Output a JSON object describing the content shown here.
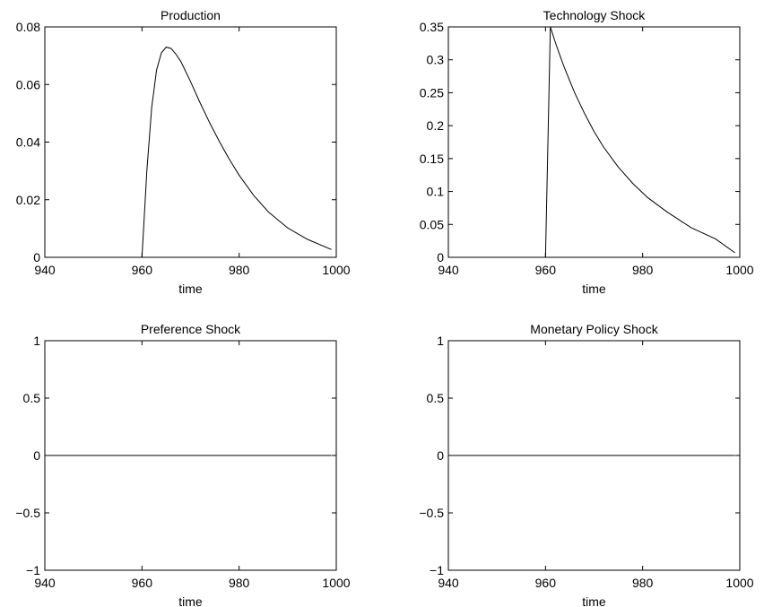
{
  "chart_data": [
    {
      "type": "line",
      "title": "Production",
      "xlabel": "time",
      "ylabel": "",
      "xlim": [
        940,
        1000
      ],
      "ylim": [
        0,
        0.08
      ],
      "xticks": [
        940,
        960,
        980,
        1000
      ],
      "xtick_labels": [
        "940",
        "960",
        "980",
        "1000"
      ],
      "yticks": [
        0,
        0.02,
        0.04,
        0.06,
        0.08
      ],
      "ytick_labels": [
        "0",
        "0.02",
        "0.04",
        "0.06",
        "0.08"
      ],
      "grid": false,
      "series": [
        {
          "x": [
            940,
            945,
            950,
            955,
            960,
            961,
            962,
            963,
            964,
            965,
            966,
            967,
            968,
            970,
            972,
            974,
            976,
            978,
            980,
            983,
            986,
            990,
            994,
            999
          ],
          "y": [
            0,
            0,
            0,
            0,
            0,
            0.03,
            0.052,
            0.065,
            0.071,
            0.073,
            0.0725,
            0.0705,
            0.068,
            0.061,
            0.0535,
            0.0465,
            0.04,
            0.034,
            0.0285,
            0.0215,
            0.0158,
            0.0102,
            0.0063,
            0.0027
          ]
        }
      ]
    },
    {
      "type": "line",
      "title": "Technology Shock",
      "xlabel": "time",
      "ylabel": "",
      "xlim": [
        940,
        1000
      ],
      "ylim": [
        0,
        0.35
      ],
      "xticks": [
        940,
        960,
        980,
        1000
      ],
      "xtick_labels": [
        "940",
        "960",
        "980",
        "1000"
      ],
      "yticks": [
        0,
        0.05,
        0.1,
        0.15,
        0.2,
        0.25,
        0.3,
        0.35
      ],
      "ytick_labels": [
        "0",
        "0.05",
        "0.1",
        "0.15",
        "0.2",
        "0.25",
        "0.3",
        "0.35"
      ],
      "grid": false,
      "series": [
        {
          "x": [
            940,
            945,
            950,
            955,
            960,
            961,
            962,
            963,
            964,
            966,
            968,
            970,
            972,
            975,
            978,
            981,
            985,
            990,
            995,
            999
          ],
          "y": [
            0,
            0,
            0,
            0,
            0,
            0.35,
            0.327,
            0.306,
            0.286,
            0.25,
            0.219,
            0.191,
            0.167,
            0.137,
            0.112,
            0.091,
            0.069,
            0.045,
            0.028,
            0.007
          ]
        }
      ]
    },
    {
      "type": "line",
      "title": "Preference Shock",
      "xlabel": "time",
      "ylabel": "",
      "xlim": [
        940,
        1000
      ],
      "ylim": [
        -1,
        1
      ],
      "xticks": [
        940,
        960,
        980,
        1000
      ],
      "xtick_labels": [
        "940",
        "960",
        "980",
        "1000"
      ],
      "yticks": [
        -1,
        -0.5,
        0,
        0.5,
        1
      ],
      "ytick_labels": [
        "−1",
        "−0.5",
        "0",
        "0.5",
        "1"
      ],
      "grid": false,
      "series": [
        {
          "x": [
            940,
            999
          ],
          "y": [
            0,
            0
          ]
        }
      ]
    },
    {
      "type": "line",
      "title": "Monetary Policy Shock",
      "xlabel": "time",
      "ylabel": "",
      "xlim": [
        940,
        1000
      ],
      "ylim": [
        -1,
        1
      ],
      "xticks": [
        940,
        960,
        980,
        1000
      ],
      "xtick_labels": [
        "940",
        "960",
        "980",
        "1000"
      ],
      "yticks": [
        -1,
        -0.5,
        0,
        0.5,
        1
      ],
      "ytick_labels": [
        "−1",
        "−0.5",
        "0",
        "0.5",
        "1"
      ],
      "grid": false,
      "series": [
        {
          "x": [
            940,
            999
          ],
          "y": [
            0,
            0
          ]
        }
      ]
    }
  ],
  "colors": {
    "line": "#000000",
    "axes": "#000000",
    "background": "#ffffff"
  }
}
